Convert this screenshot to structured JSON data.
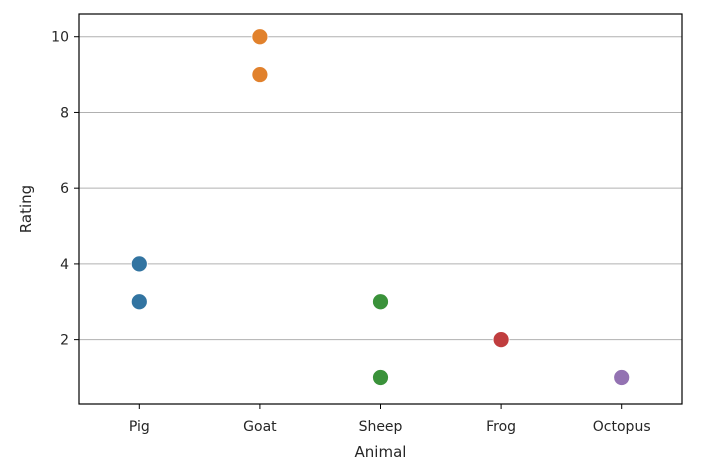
{
  "chart_data": {
    "type": "scatter",
    "title": "",
    "xlabel": "Animal",
    "ylabel": "Rating",
    "categories": [
      "Pig",
      "Goat",
      "Sheep",
      "Frog",
      "Octopus"
    ],
    "ylim": [
      0.3,
      10.6
    ],
    "yticks": [
      2,
      4,
      6,
      8,
      10
    ],
    "grid": "horizontal",
    "points": [
      {
        "category": "Pig",
        "value": 4
      },
      {
        "category": "Pig",
        "value": 3
      },
      {
        "category": "Goat",
        "value": 10
      },
      {
        "category": "Goat",
        "value": 9
      },
      {
        "category": "Sheep",
        "value": 3
      },
      {
        "category": "Sheep",
        "value": 1
      },
      {
        "category": "Frog",
        "value": 2
      },
      {
        "category": "Octopus",
        "value": 1
      }
    ],
    "colors": {
      "Pig": "#3274a1",
      "Goat": "#e1812c",
      "Sheep": "#3a923a",
      "Frog": "#c03d3e",
      "Octopus": "#9372b2"
    },
    "grid_color": "#b0b0b0",
    "axis_color": "#000000"
  }
}
